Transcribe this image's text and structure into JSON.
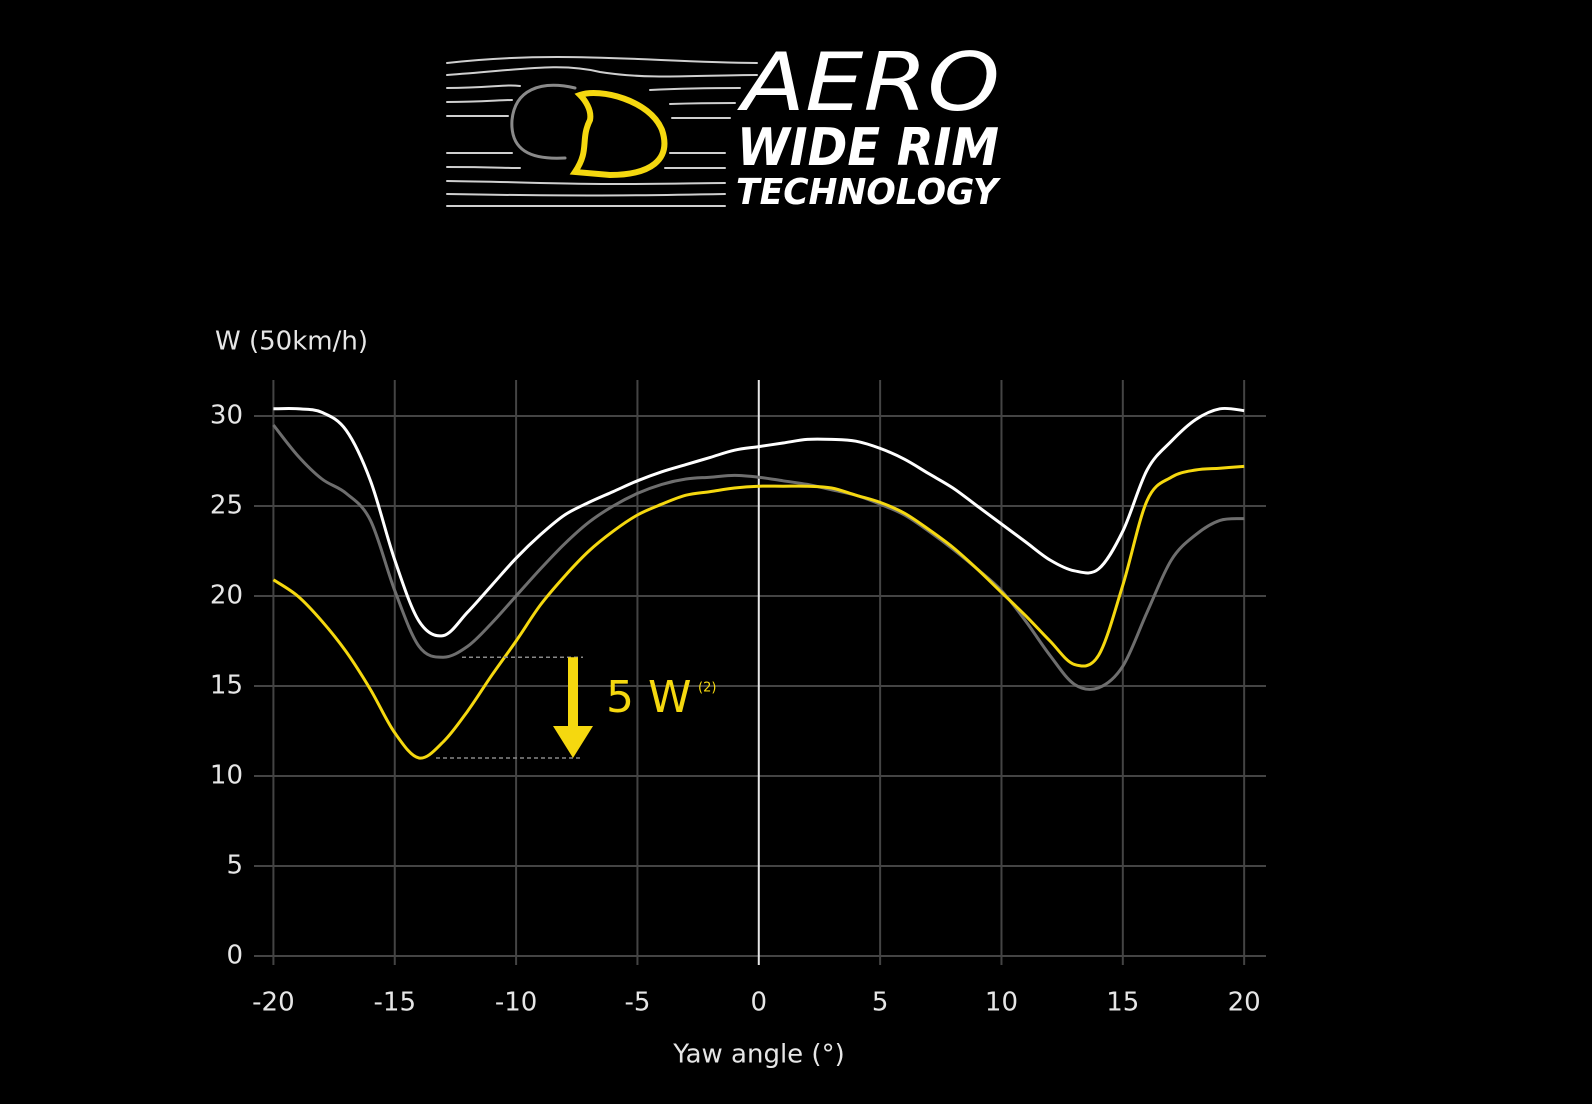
{
  "logo": {
    "lines": [
      "AERO",
      "WIDE RIM",
      "TECHNOLOGY"
    ]
  },
  "chart_data": {
    "type": "line",
    "y_label": "W (50km/h)",
    "x_label": "Yaw angle (°)",
    "annotation": {
      "text": "5 W",
      "superscript": "(2)",
      "color": "#f5d80f"
    },
    "x": [
      -20,
      -19,
      -18,
      -17,
      -16,
      -15,
      -14,
      -13,
      -12,
      -11,
      -10,
      -9,
      -8,
      -7,
      -6,
      -5,
      -4,
      -3,
      -2,
      -1,
      0,
      1,
      2,
      3,
      4,
      5,
      6,
      7,
      8,
      9,
      10,
      11,
      12,
      13,
      14,
      15,
      16,
      17,
      18,
      19,
      20
    ],
    "series": [
      {
        "color": "#ffffff",
        "values": [
          30.4,
          30.4,
          30.2,
          29.2,
          26.4,
          22.0,
          18.6,
          17.8,
          19.1,
          20.6,
          22.1,
          23.4,
          24.5,
          25.2,
          25.8,
          26.4,
          26.9,
          27.3,
          27.7,
          28.1,
          28.3,
          28.5,
          28.7,
          28.7,
          28.6,
          28.2,
          27.6,
          26.8,
          26.0,
          25.0,
          24.0,
          23.0,
          22.0,
          21.4,
          21.5,
          23.6,
          27.0,
          28.6,
          29.8,
          30.4,
          30.3
        ]
      },
      {
        "color": "#6e6e6e",
        "values": [
          29.5,
          27.8,
          26.5,
          25.7,
          24.2,
          20.3,
          17.2,
          16.6,
          17.2,
          18.5,
          20.0,
          21.5,
          22.9,
          24.1,
          25.0,
          25.7,
          26.2,
          26.5,
          26.6,
          26.7,
          26.6,
          26.4,
          26.2,
          25.9,
          25.6,
          25.1,
          24.5,
          23.6,
          22.6,
          21.5,
          20.3,
          18.6,
          16.7,
          15.1,
          14.9,
          16.1,
          19.1,
          22.0,
          23.4,
          24.2,
          24.3
        ]
      },
      {
        "color": "#f5d80f",
        "values": [
          20.9,
          20.0,
          18.6,
          16.9,
          14.8,
          12.4,
          11.0,
          11.9,
          13.6,
          15.6,
          17.5,
          19.5,
          21.1,
          22.5,
          23.6,
          24.5,
          25.1,
          25.6,
          25.8,
          26.0,
          26.1,
          26.1,
          26.1,
          26.0,
          25.6,
          25.2,
          24.6,
          23.7,
          22.7,
          21.5,
          20.2,
          18.9,
          17.5,
          16.2,
          16.7,
          20.6,
          25.3,
          26.6,
          27.0,
          27.1,
          27.2
        ]
      }
    ],
    "xlim": [
      -20.8,
      20.9
    ],
    "ylim": [
      -0.5,
      32
    ],
    "xticks": [
      -20,
      -15,
      -10,
      -5,
      0,
      5,
      10,
      15,
      20
    ],
    "yticks": [
      0,
      5,
      10,
      15,
      20,
      25,
      30
    ],
    "grid": true
  }
}
